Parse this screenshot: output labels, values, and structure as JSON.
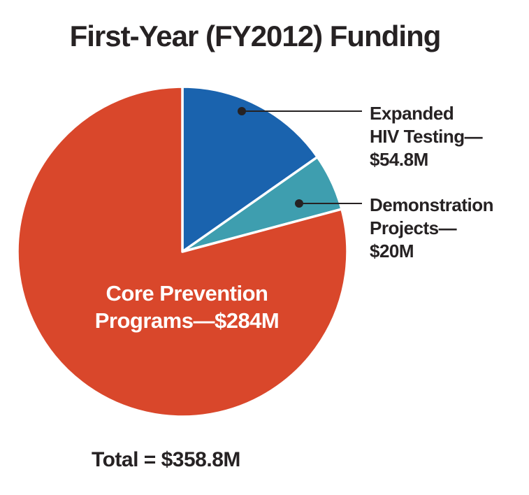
{
  "title": "First-Year (FY2012) Funding",
  "total_text": "Total = $358.8M",
  "chart_data": {
    "type": "pie",
    "title": "First-Year (FY2012) Funding",
    "total": 358.8,
    "start_angle": "12 o'clock",
    "direction": "clockwise",
    "slices": [
      {
        "id": "expanded-hiv-testing",
        "label": "Expanded HIV Testing",
        "value": 54.8,
        "display_value": "$54.8M",
        "color": "#1A63AE"
      },
      {
        "id": "demonstration-projects",
        "label": "Demonstration Projects",
        "value": 20,
        "display_value": "$20M",
        "color": "#3E9EAF"
      },
      {
        "id": "core-prevention",
        "label": "Core Prevention Programs",
        "value": 284,
        "display_value": "$284M",
        "color": "#D9472B"
      }
    ],
    "legend_position": "callouts-right",
    "inner_label_slice": "core-prevention"
  },
  "callouts": {
    "expanded": {
      "line1": "Expanded",
      "line2": "HIV Testing—",
      "line3": "$54.8M"
    },
    "demonstration": {
      "line1": "Demonstration",
      "line2": "Projects—",
      "line3": "$20M"
    },
    "core": {
      "line1": "Core Prevention",
      "line2": "Programs—$284M"
    }
  },
  "style_colors": {
    "text": "#262223",
    "core_label_text": "#ffffff",
    "leader": "#262223",
    "slice_gap": "#ffffff"
  }
}
